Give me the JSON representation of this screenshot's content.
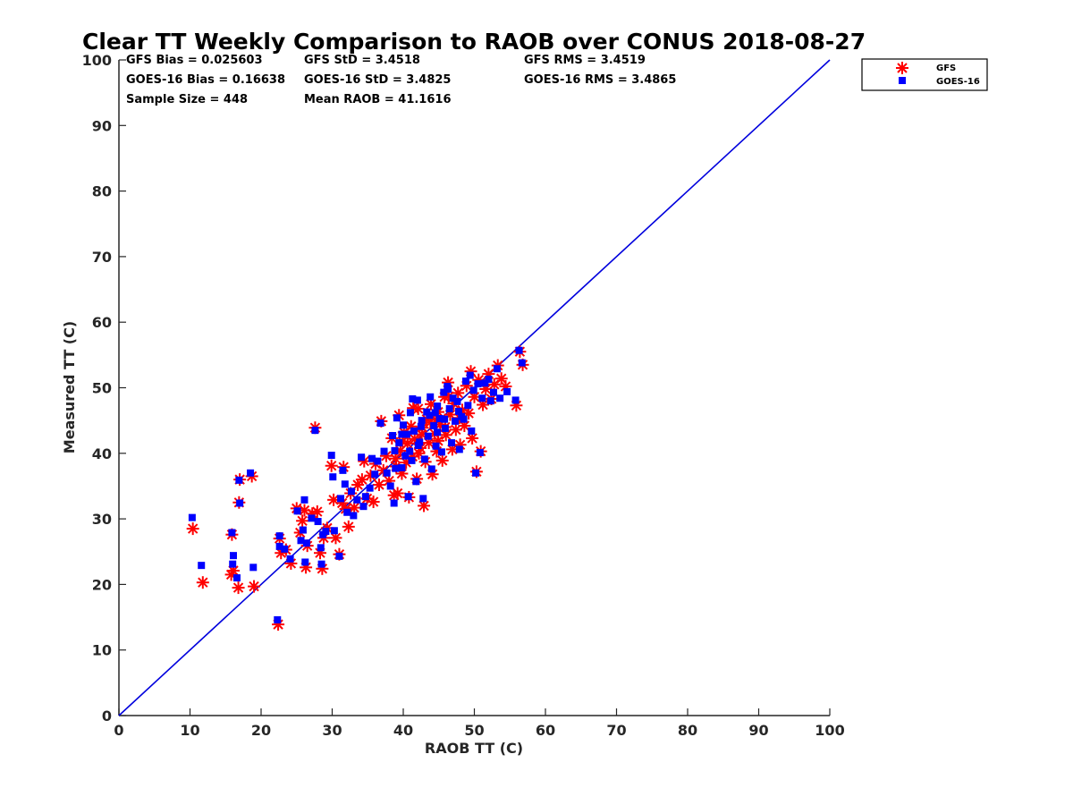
{
  "chart_data": {
    "type": "scatter",
    "title": "Clear TT Weekly Comparison to RAOB over CONUS 2018-08-27",
    "xlabel": "RAOB TT (C)",
    "ylabel": "Measured TT (C)",
    "xlim": [
      0,
      100
    ],
    "ylim": [
      0,
      100
    ],
    "xticks": [
      "0",
      "10",
      "20",
      "30",
      "40",
      "50",
      "60",
      "70",
      "80",
      "90",
      "100"
    ],
    "yticks": [
      "0",
      "10",
      "20",
      "30",
      "40",
      "50",
      "60",
      "70",
      "80",
      "90",
      "100"
    ],
    "reference_line": {
      "type": "one-to-one",
      "from": [
        0,
        0
      ],
      "to": [
        100,
        100
      ],
      "color": "#0000dd"
    },
    "stats": {
      "gfs_bias": "GFS Bias = 0.025603",
      "gfs_std": "GFS StD = 3.4518",
      "gfs_rms": "GFS RMS = 3.4519",
      "goes_bias": "GOES-16 Bias = 0.16638",
      "goes_std": "GOES-16 StD = 3.4825",
      "goes_rms": "GOES-16 RMS = 3.4865",
      "sample_size": "Sample Size = 448",
      "mean_raob": "Mean RAOB = 41.1616"
    },
    "legend": {
      "location": "top-right outside",
      "entries": [
        "GFS",
        "GOES-16"
      ]
    },
    "series": [
      {
        "name": "GFS",
        "marker": "asterisk",
        "color": "#ff0000",
        "points": [
          [
            10.4,
            28.5
          ],
          [
            11.8,
            20.3
          ],
          [
            15.9,
            27.6
          ],
          [
            15.8,
            21.5
          ],
          [
            16.1,
            22.1
          ],
          [
            16.8,
            19.5
          ],
          [
            17.0,
            36.0
          ],
          [
            16.9,
            32.5
          ],
          [
            18.7,
            36.5
          ],
          [
            19.0,
            19.7
          ],
          [
            22.4,
            13.9
          ],
          [
            22.6,
            27.0
          ],
          [
            22.8,
            24.8
          ],
          [
            23.5,
            25.3
          ],
          [
            24.2,
            23.2
          ],
          [
            25.0,
            31.6
          ],
          [
            25.5,
            27.9
          ],
          [
            25.8,
            29.7
          ],
          [
            26.1,
            31.3
          ],
          [
            26.3,
            22.6
          ],
          [
            26.5,
            25.9
          ],
          [
            27.2,
            30.8
          ],
          [
            27.6,
            43.9
          ],
          [
            27.9,
            31.1
          ],
          [
            28.3,
            24.8
          ],
          [
            28.6,
            22.4
          ],
          [
            28.8,
            27.1
          ],
          [
            29.3,
            28.6
          ],
          [
            29.9,
            38.1
          ],
          [
            30.2,
            32.9
          ],
          [
            30.5,
            27.1
          ],
          [
            31.0,
            24.6
          ],
          [
            31.4,
            32.4
          ],
          [
            31.6,
            37.9
          ],
          [
            31.9,
            31.5
          ],
          [
            32.3,
            28.8
          ],
          [
            32.6,
            33.9
          ],
          [
            33.1,
            31.7
          ],
          [
            33.6,
            35.2
          ],
          [
            34.2,
            36.0
          ],
          [
            34.5,
            38.8
          ],
          [
            34.9,
            33.1
          ],
          [
            35.4,
            36.6
          ],
          [
            35.8,
            32.6
          ],
          [
            36.1,
            38.4
          ],
          [
            36.6,
            35.2
          ],
          [
            36.9,
            44.9
          ],
          [
            37.2,
            37.4
          ],
          [
            37.6,
            39.6
          ],
          [
            38.0,
            35.8
          ],
          [
            38.4,
            42.3
          ],
          [
            38.7,
            33.6
          ],
          [
            39.0,
            38.0
          ],
          [
            39.2,
            33.9
          ],
          [
            39.4,
            45.8
          ],
          [
            39.6,
            40.4
          ],
          [
            39.8,
            36.9
          ],
          [
            40.1,
            43.2
          ],
          [
            40.4,
            38.6
          ],
          [
            40.6,
            41.5
          ],
          [
            40.8,
            33.3
          ],
          [
            41.1,
            44.1
          ],
          [
            41.3,
            39.5
          ],
          [
            41.6,
            42.2
          ],
          [
            41.9,
            36.1
          ],
          [
            42.1,
            46.8
          ],
          [
            42.4,
            40.8
          ],
          [
            42.7,
            43.9
          ],
          [
            42.9,
            32.0
          ],
          [
            43.1,
            38.7
          ],
          [
            43.3,
            45.2
          ],
          [
            43.6,
            41.6
          ],
          [
            43.9,
            47.5
          ],
          [
            44.1,
            36.8
          ],
          [
            44.4,
            43.0
          ],
          [
            44.7,
            40.3
          ],
          [
            44.9,
            46.3
          ],
          [
            45.2,
            44.4
          ],
          [
            45.5,
            38.9
          ],
          [
            45.8,
            48.6
          ],
          [
            46.0,
            42.8
          ],
          [
            46.3,
            50.8
          ],
          [
            46.6,
            45.9
          ],
          [
            46.9,
            40.6
          ],
          [
            47.1,
            47.6
          ],
          [
            47.4,
            43.6
          ],
          [
            47.7,
            49.2
          ],
          [
            48.0,
            41.3
          ],
          [
            48.3,
            46.6
          ],
          [
            48.6,
            44.2
          ],
          [
            48.9,
            50.3
          ],
          [
            49.2,
            46.1
          ],
          [
            49.5,
            52.5
          ],
          [
            49.7,
            42.3
          ],
          [
            50.0,
            48.6
          ],
          [
            50.3,
            37.2
          ],
          [
            50.6,
            51.2
          ],
          [
            50.9,
            40.3
          ],
          [
            51.2,
            47.4
          ],
          [
            51.6,
            49.8
          ],
          [
            52.0,
            52.1
          ],
          [
            52.4,
            48.3
          ],
          [
            52.8,
            50.5
          ],
          [
            53.3,
            53.4
          ],
          [
            53.8,
            51.4
          ],
          [
            54.4,
            50.2
          ],
          [
            55.9,
            47.3
          ],
          [
            56.4,
            55.5
          ],
          [
            56.8,
            53.5
          ],
          [
            44.6,
            45.1
          ],
          [
            42.6,
            42.9
          ],
          [
            45.9,
            44.0
          ],
          [
            41.4,
            46.9
          ],
          [
            47.9,
            45.4
          ],
          [
            39.9,
            41.8
          ],
          [
            43.8,
            44.7
          ],
          [
            46.4,
            48.7
          ],
          [
            38.9,
            39.2
          ],
          [
            44.9,
            41.9
          ],
          [
            42.2,
            40.0
          ]
        ]
      },
      {
        "name": "GOES-16",
        "marker": "square",
        "color": "#0000ff",
        "points": [
          [
            10.3,
            30.2
          ],
          [
            11.6,
            22.9
          ],
          [
            15.9,
            27.9
          ],
          [
            16.1,
            24.4
          ],
          [
            16.0,
            23.1
          ],
          [
            16.6,
            21.0
          ],
          [
            16.9,
            35.9
          ],
          [
            17.0,
            32.4
          ],
          [
            18.5,
            37.0
          ],
          [
            18.9,
            22.6
          ],
          [
            22.3,
            14.6
          ],
          [
            22.6,
            27.4
          ],
          [
            22.6,
            25.8
          ],
          [
            23.3,
            25.4
          ],
          [
            24.1,
            23.9
          ],
          [
            25.1,
            31.2
          ],
          [
            25.6,
            26.7
          ],
          [
            25.9,
            28.3
          ],
          [
            26.1,
            32.9
          ],
          [
            26.2,
            23.4
          ],
          [
            26.4,
            26.3
          ],
          [
            27.1,
            30.1
          ],
          [
            27.6,
            43.5
          ],
          [
            28.0,
            29.6
          ],
          [
            28.4,
            25.6
          ],
          [
            28.5,
            23.1
          ],
          [
            28.7,
            27.6
          ],
          [
            29.1,
            28.1
          ],
          [
            29.9,
            39.7
          ],
          [
            30.1,
            36.4
          ],
          [
            30.3,
            28.2
          ],
          [
            31.0,
            24.3
          ],
          [
            31.2,
            33.1
          ],
          [
            31.5,
            37.4
          ],
          [
            31.8,
            35.3
          ],
          [
            32.1,
            31.0
          ],
          [
            32.7,
            34.2
          ],
          [
            33.0,
            30.5
          ],
          [
            33.5,
            32.9
          ],
          [
            34.1,
            39.4
          ],
          [
            34.4,
            31.9
          ],
          [
            34.7,
            33.4
          ],
          [
            35.3,
            34.7
          ],
          [
            35.6,
            39.2
          ],
          [
            36.0,
            36.8
          ],
          [
            36.4,
            38.8
          ],
          [
            36.8,
            44.6
          ],
          [
            37.3,
            40.3
          ],
          [
            37.7,
            37.0
          ],
          [
            38.2,
            35.0
          ],
          [
            38.5,
            42.7
          ],
          [
            38.7,
            32.4
          ],
          [
            38.9,
            37.7
          ],
          [
            39.1,
            45.4
          ],
          [
            39.4,
            41.6
          ],
          [
            39.8,
            37.8
          ],
          [
            40.0,
            44.3
          ],
          [
            40.3,
            39.6
          ],
          [
            40.5,
            42.9
          ],
          [
            40.7,
            33.4
          ],
          [
            41.0,
            46.2
          ],
          [
            41.2,
            38.9
          ],
          [
            41.5,
            43.4
          ],
          [
            41.8,
            35.7
          ],
          [
            42.0,
            48.1
          ],
          [
            42.3,
            41.7
          ],
          [
            42.6,
            45.0
          ],
          [
            42.8,
            33.1
          ],
          [
            43.0,
            39.1
          ],
          [
            43.3,
            46.3
          ],
          [
            43.5,
            42.6
          ],
          [
            43.8,
            48.6
          ],
          [
            44.0,
            37.6
          ],
          [
            44.3,
            44.2
          ],
          [
            44.6,
            41.1
          ],
          [
            44.8,
            47.2
          ],
          [
            45.1,
            45.3
          ],
          [
            45.4,
            40.2
          ],
          [
            45.7,
            49.3
          ],
          [
            45.9,
            43.8
          ],
          [
            46.2,
            50.2
          ],
          [
            46.5,
            46.8
          ],
          [
            46.8,
            41.6
          ],
          [
            47.0,
            48.4
          ],
          [
            47.3,
            44.9
          ],
          [
            47.6,
            47.9
          ],
          [
            47.9,
            40.6
          ],
          [
            48.2,
            45.6
          ],
          [
            48.5,
            45.2
          ],
          [
            48.8,
            51.0
          ],
          [
            49.1,
            47.3
          ],
          [
            49.4,
            51.9
          ],
          [
            49.6,
            43.4
          ],
          [
            49.9,
            49.6
          ],
          [
            50.2,
            37.0
          ],
          [
            50.5,
            50.6
          ],
          [
            50.8,
            40.1
          ],
          [
            51.1,
            48.4
          ],
          [
            51.5,
            50.7
          ],
          [
            52.0,
            51.3
          ],
          [
            52.3,
            48.0
          ],
          [
            52.7,
            49.3
          ],
          [
            53.2,
            52.9
          ],
          [
            53.6,
            48.4
          ],
          [
            54.6,
            49.4
          ],
          [
            55.8,
            48.1
          ],
          [
            56.3,
            55.7
          ],
          [
            56.7,
            53.8
          ],
          [
            44.5,
            46.2
          ],
          [
            42.5,
            44.1
          ],
          [
            45.8,
            45.2
          ],
          [
            41.3,
            48.3
          ],
          [
            47.8,
            46.4
          ],
          [
            39.8,
            42.9
          ],
          [
            43.7,
            45.8
          ],
          [
            46.3,
            49.8
          ],
          [
            38.8,
            40.4
          ],
          [
            44.8,
            43.2
          ],
          [
            42.1,
            41.2
          ],
          [
            40.9,
            40.3
          ]
        ]
      }
    ]
  }
}
